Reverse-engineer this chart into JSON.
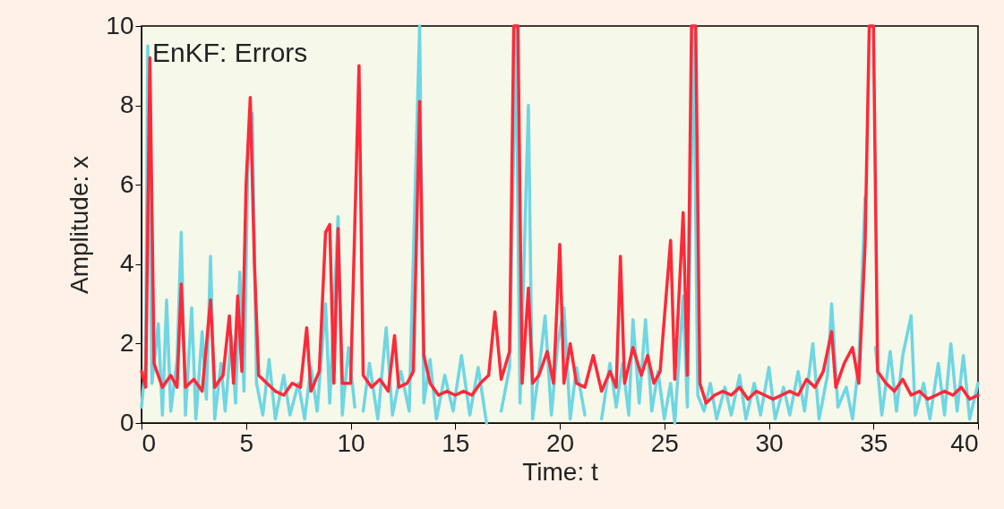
{
  "chart_data": {
    "type": "line",
    "title": "EnKF: Errors",
    "xlabel": "Time: t",
    "ylabel": "Amplitude: x",
    "xlim": [
      0,
      40
    ],
    "xticks": [
      0,
      5,
      10,
      15,
      20,
      25,
      30,
      35,
      40
    ],
    "ylim": [
      0,
      10
    ],
    "yticks": [
      0,
      2,
      4,
      6,
      8,
      10
    ],
    "grid": false,
    "legend": false,
    "marker": "none",
    "line_style": "solid",
    "series": [
      {
        "color": "#6fd6e2",
        "x": [
          0,
          0.2,
          0.3,
          0.5,
          0.8,
          1.0,
          1.2,
          1.4,
          1.7,
          1.9,
          2.1,
          2.4,
          2.6,
          2.9,
          3.1,
          3.3,
          3.5,
          3.8,
          4.0,
          4.3,
          4.5,
          4.7,
          4.9,
          5.1,
          5.3,
          5.5,
          5.8,
          6.1,
          6.4,
          6.8,
          7.1,
          7.5,
          7.8,
          8.1,
          8.4,
          8.8,
          9.0,
          9.4,
          9.6,
          9.9,
          10.2,
          10.4,
          10.6,
          10.9,
          11.3,
          11.7,
          12.0,
          12.4,
          12.8,
          13.3,
          13.5,
          13.8,
          14.1,
          14.5,
          14.9,
          15.3,
          15.7,
          16.1,
          16.5,
          16.9,
          17.2,
          17.6,
          17.9,
          18.1,
          18.5,
          18.7,
          19.0,
          19.3,
          19.6,
          19.9,
          20.2,
          20.5,
          20.8,
          21.2,
          21.6,
          22.0,
          22.4,
          22.7,
          23.0,
          23.3,
          23.5,
          23.8,
          24.1,
          24.4,
          24.7,
          25.0,
          25.3,
          25.5,
          25.9,
          26.1,
          26.4,
          26.6,
          26.9,
          27.2,
          27.5,
          27.9,
          28.2,
          28.6,
          28.9,
          29.3,
          29.6,
          30.0,
          30.3,
          30.7,
          31.0,
          31.4,
          31.7,
          32.1,
          32.4,
          32.8,
          33.0,
          33.3,
          33.7,
          34.0,
          34.3,
          34.6,
          34.8,
          35.1,
          35.4,
          35.8,
          36.1,
          36.4,
          36.8,
          37.0,
          37.4,
          37.7,
          38.1,
          38.4,
          38.7,
          39.0,
          39.3,
          39.6,
          40.0
        ],
        "values": [
          0.4,
          1.5,
          9.5,
          1.0,
          2.5,
          0.2,
          3.1,
          0.3,
          1.6,
          4.8,
          0.2,
          2.9,
          0.1,
          2.3,
          0.6,
          4.2,
          0.1,
          1.5,
          0.3,
          2.2,
          0.5,
          3.8,
          0.8,
          7.0,
          7.8,
          1.0,
          0.2,
          1.6,
          0.1,
          1.2,
          0.2,
          1.0,
          0.1,
          1.4,
          0.3,
          3.0,
          0.5,
          5.2,
          0.2,
          1.9,
          0.4,
          null,
          0.3,
          1.5,
          0.1,
          2.4,
          0.2,
          1.3,
          0.3,
          10,
          0.5,
          1.6,
          0.1,
          1.2,
          0.3,
          1.7,
          0.2,
          1.4,
          0.0,
          null,
          0.3,
          1.4,
          10,
          0.5,
          8.0,
          0.1,
          1.3,
          2.7,
          0.2,
          2.0,
          2.9,
          0.1,
          1.4,
          0.2,
          null,
          0.1,
          1.5,
          0.4,
          1.5,
          0.2,
          2.6,
          0.5,
          2.6,
          0.3,
          1.3,
          0.1,
          1.0,
          0.0,
          3.2,
          0.4,
          10,
          0.7,
          0.3,
          1.0,
          0.1,
          0.9,
          0.2,
          1.2,
          0.1,
          1.0,
          0.2,
          1.4,
          0.1,
          0.9,
          0.2,
          1.3,
          0.3,
          2.0,
          0.1,
          1.2,
          3.0,
          0.4,
          0.9,
          0.1,
          1.5,
          5.7,
          null,
          1.9,
          0.2,
          1.8,
          0.3,
          1.7,
          2.7,
          0.2,
          1.0,
          0.1,
          1.5,
          0.2,
          2.0,
          0.3,
          1.7,
          0.1,
          1.0
        ]
      },
      {
        "color": "#fc2a3a",
        "x": [
          0,
          0.2,
          0.4,
          0.6,
          1.0,
          1.4,
          1.7,
          1.9,
          2.1,
          2.5,
          2.9,
          3.3,
          3.5,
          3.9,
          4.2,
          4.4,
          4.6,
          4.8,
          5.0,
          5.2,
          5.4,
          5.6,
          6.0,
          6.4,
          6.8,
          7.2,
          7.6,
          7.9,
          8.1,
          8.5,
          8.8,
          9.0,
          9.2,
          9.4,
          9.6,
          10.0,
          10.4,
          10.6,
          11.0,
          11.4,
          11.8,
          12.1,
          12.3,
          12.7,
          13.0,
          13.3,
          13.5,
          13.8,
          14.2,
          14.6,
          15.0,
          15.4,
          15.8,
          16.2,
          16.6,
          16.9,
          17.2,
          17.6,
          17.8,
          18.0,
          18.2,
          18.5,
          18.7,
          19.0,
          19.4,
          19.7,
          20.0,
          20.2,
          20.5,
          20.8,
          21.2,
          21.6,
          22.0,
          22.4,
          22.7,
          22.9,
          23.1,
          23.5,
          23.9,
          24.2,
          24.5,
          24.8,
          25.1,
          25.3,
          25.5,
          25.9,
          26.1,
          26.3,
          26.5,
          26.7,
          27.0,
          27.4,
          27.8,
          28.2,
          28.6,
          29.0,
          29.4,
          29.8,
          30.2,
          30.6,
          31.0,
          31.4,
          31.8,
          32.2,
          32.6,
          33.0,
          33.2,
          33.6,
          34.0,
          34.3,
          34.6,
          34.8,
          35.0,
          35.2,
          35.6,
          36.0,
          36.4,
          36.8,
          37.2,
          37.6,
          38.0,
          38.4,
          38.8,
          39.2,
          39.6,
          40.0
        ],
        "values": [
          1.3,
          0.9,
          9.2,
          1.5,
          0.9,
          1.2,
          0.9,
          3.5,
          0.9,
          1.1,
          0.8,
          3.1,
          0.9,
          1.2,
          2.7,
          1.0,
          3.2,
          1.3,
          6.0,
          8.2,
          4.0,
          1.2,
          1.0,
          0.8,
          0.7,
          1.0,
          0.9,
          2.4,
          0.8,
          1.3,
          4.8,
          5.0,
          1.0,
          4.9,
          1.0,
          1.0,
          9.0,
          1.2,
          0.9,
          1.1,
          0.8,
          2.2,
          0.9,
          1.0,
          1.3,
          8.1,
          1.7,
          1.0,
          0.7,
          0.8,
          0.7,
          0.8,
          0.7,
          1.0,
          1.2,
          2.8,
          1.1,
          1.8,
          10,
          10,
          1.0,
          3.4,
          1.0,
          1.2,
          1.8,
          1.0,
          4.5,
          1.0,
          2.0,
          1.0,
          0.9,
          1.7,
          0.8,
          1.3,
          0.9,
          4.2,
          1.0,
          1.9,
          1.2,
          1.7,
          1.0,
          1.3,
          3.3,
          4.6,
          1.1,
          5.3,
          1.2,
          10,
          10,
          1.0,
          0.5,
          0.7,
          0.8,
          0.7,
          0.9,
          0.6,
          0.8,
          0.7,
          0.6,
          0.7,
          0.8,
          0.7,
          1.1,
          0.9,
          1.3,
          2.3,
          0.9,
          1.5,
          1.9,
          1.0,
          4.5,
          10,
          10,
          1.3,
          1.0,
          0.8,
          1.1,
          0.7,
          0.8,
          0.6,
          0.7,
          0.8,
          0.7,
          0.9,
          0.6,
          0.7
        ]
      }
    ]
  }
}
